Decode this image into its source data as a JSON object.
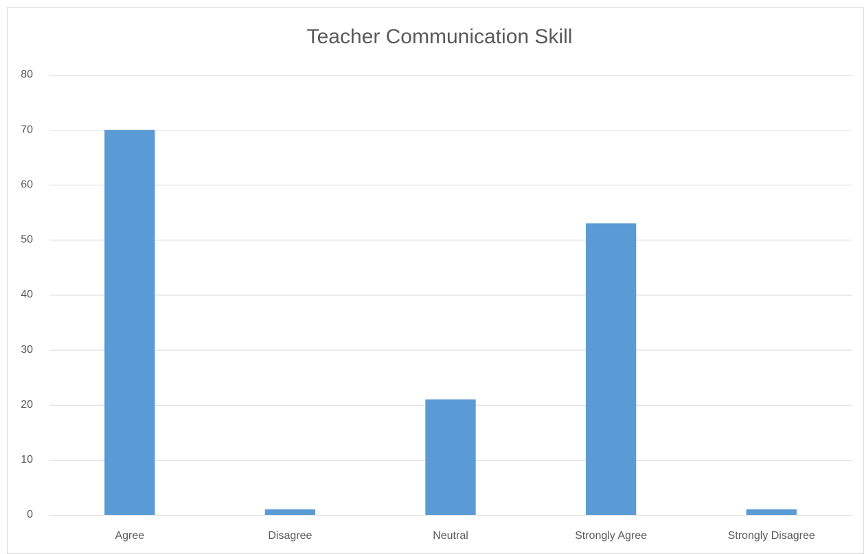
{
  "chart_data": {
    "type": "bar",
    "title": "Teacher Communication Skill",
    "categories": [
      "Agree",
      "Disagree",
      "Neutral",
      "Strongly Agree",
      "Strongly Disagree"
    ],
    "values": [
      70,
      1,
      21,
      53,
      1
    ],
    "color": "#5b9bd5",
    "ylim": [
      0,
      80
    ],
    "yticks": [
      0,
      10,
      20,
      30,
      40,
      50,
      60,
      70,
      80
    ],
    "grid": true
  }
}
